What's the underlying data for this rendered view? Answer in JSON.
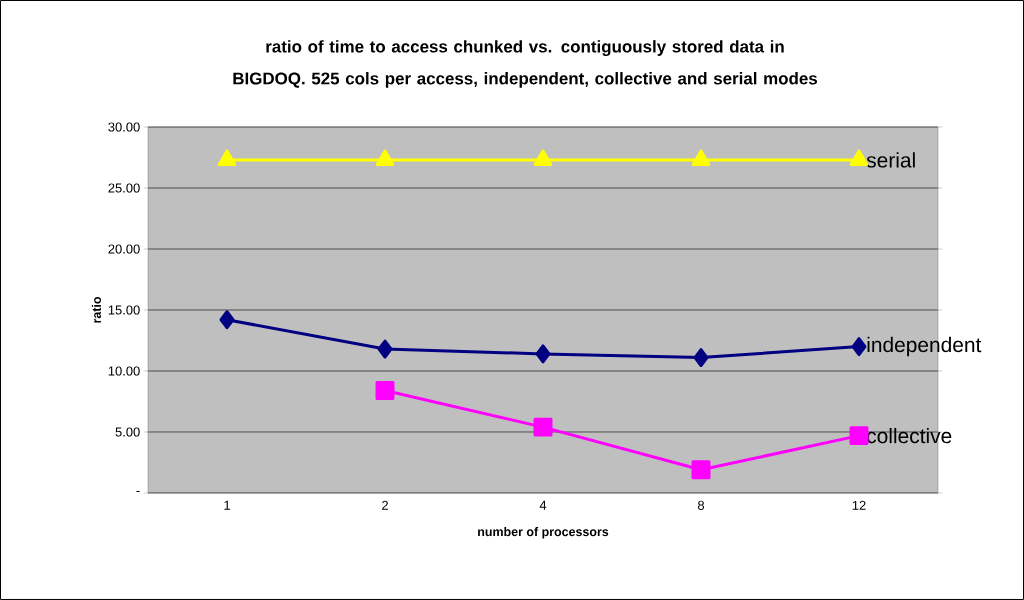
{
  "chart_data": {
    "type": "line",
    "title": "ratio of time to access chunked vs. contiguously stored data in BIGDOQ. 525 cols per access, independent, collective and serial modes",
    "xlabel": "number of processors",
    "ylabel": "ratio",
    "categories": [
      "1",
      "2",
      "4",
      "8",
      "12"
    ],
    "series": [
      {
        "name": "serial",
        "color": "#ffff00",
        "marker": "triangle",
        "values": [
          27.3,
          27.3,
          27.3,
          27.3,
          27.3
        ]
      },
      {
        "name": "independent",
        "color": "#000080",
        "marker": "diamond",
        "values": [
          14.2,
          11.8,
          11.4,
          11.1,
          12.0
        ]
      },
      {
        "name": "collective",
        "color": "#ff00ff",
        "marker": "square",
        "values": [
          null,
          8.4,
          5.4,
          1.9,
          4.7
        ]
      }
    ],
    "ylim": [
      0,
      30
    ],
    "yticks": [
      {
        "value": 0,
        "label": "-"
      },
      {
        "value": 5,
        "label": "5.00"
      },
      {
        "value": 10,
        "label": "10.00"
      },
      {
        "value": 15,
        "label": "15.00"
      },
      {
        "value": 20,
        "label": "20.00"
      },
      {
        "value": 25,
        "label": "25.00"
      },
      {
        "value": 30,
        "label": "30.00"
      }
    ],
    "grid": "y",
    "line_style": "solid"
  }
}
